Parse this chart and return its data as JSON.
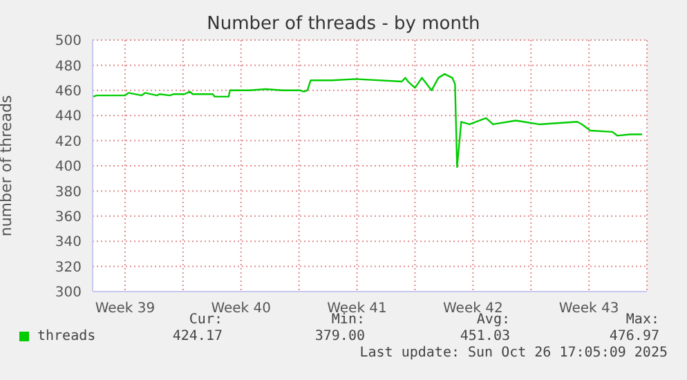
{
  "chart_data": {
    "type": "line",
    "title": "Number of threads - by month",
    "ylabel": "number of threads",
    "xlim": [
      "2025-09-23T13:00",
      "2025-10-27"
    ],
    "xticks": [
      {
        "value": "2025-09-25T12:00",
        "label": "Week 39"
      },
      {
        "value": "2025-09-29",
        "label": null
      },
      {
        "value": "2025-10-02T12:00",
        "label": "Week 40"
      },
      {
        "value": "2025-10-06",
        "label": null
      },
      {
        "value": "2025-10-09T12:00",
        "label": "Week 41"
      },
      {
        "value": "2025-10-13",
        "label": null
      },
      {
        "value": "2025-10-16T12:00",
        "label": "Week 42"
      },
      {
        "value": "2025-10-20",
        "label": null
      },
      {
        "value": "2025-10-23T12:00",
        "label": "Week 43"
      }
    ],
    "ylim": [
      300,
      500
    ],
    "yticks": [
      300,
      320,
      340,
      360,
      380,
      400,
      420,
      440,
      460,
      480,
      500
    ],
    "grid": true,
    "legend": "bottom",
    "marker": "none",
    "line_style": "solid",
    "series": [
      {
        "name": "threads",
        "color": "#00cc00",
        "x": [
          "2025-09-23T13:30",
          "2025-09-23T19:00",
          "2025-09-25",
          "2025-09-25T12:00",
          "2025-09-25T17:00",
          "2025-09-26T12:00",
          "2025-09-26T17:00",
          "2025-09-27T10:00",
          "2025-09-27T14:00",
          "2025-09-28T05:00",
          "2025-09-28T10:00",
          "2025-09-29T02:00",
          "2025-09-29T10:00",
          "2025-09-29T14:00",
          "2025-09-30T19:00",
          "2025-09-30T22:00",
          "2025-10-01T18:00",
          "2025-10-01T20:00",
          "2025-10-03",
          "2025-10-04",
          "2025-10-05",
          "2025-10-06T02:00",
          "2025-10-06T07:00",
          "2025-10-06T12:00",
          "2025-10-06T17:00",
          "2025-10-08",
          "2025-10-09T10:00",
          "2025-10-12T05:00",
          "2025-10-12T10:00",
          "2025-10-12T14:00",
          "2025-10-13",
          "2025-10-13T10:00",
          "2025-10-14",
          "2025-10-14T10:00",
          "2025-10-14T19:00",
          "2025-10-15T06:00",
          "2025-10-15T10:00",
          "2025-10-15T13:00",
          "2025-10-15T19:00",
          "2025-10-16T07:00",
          "2025-10-17T07:00",
          "2025-10-17T17:00",
          "2025-10-19T02:00",
          "2025-10-20T12:00",
          "2025-10-22T19:00",
          "2025-10-23T02:00",
          "2025-10-23T14:00",
          "2025-10-24T22:00",
          "2025-10-25T05:00",
          "2025-10-26",
          "2025-10-26T17:00"
        ],
        "values": [
          455,
          456,
          456,
          456,
          458,
          456,
          458,
          456,
          457,
          456,
          457,
          457,
          459,
          457,
          457,
          455,
          455,
          460,
          460,
          461,
          460,
          460,
          459,
          460,
          468,
          468,
          469,
          467,
          470,
          467,
          462,
          470,
          460,
          470,
          473,
          470,
          465,
          399,
          435,
          433,
          438,
          433,
          436,
          433,
          435,
          433,
          428,
          427,
          424,
          425,
          425
        ]
      }
    ],
    "annotations": [
      "Cur:",
      "Min:",
      "Avg:",
      "Max:",
      "424.17",
      "379.00",
      "451.03",
      "476.97",
      "Last update: Sun Oct 26 17:05:09 2025"
    ]
  }
}
